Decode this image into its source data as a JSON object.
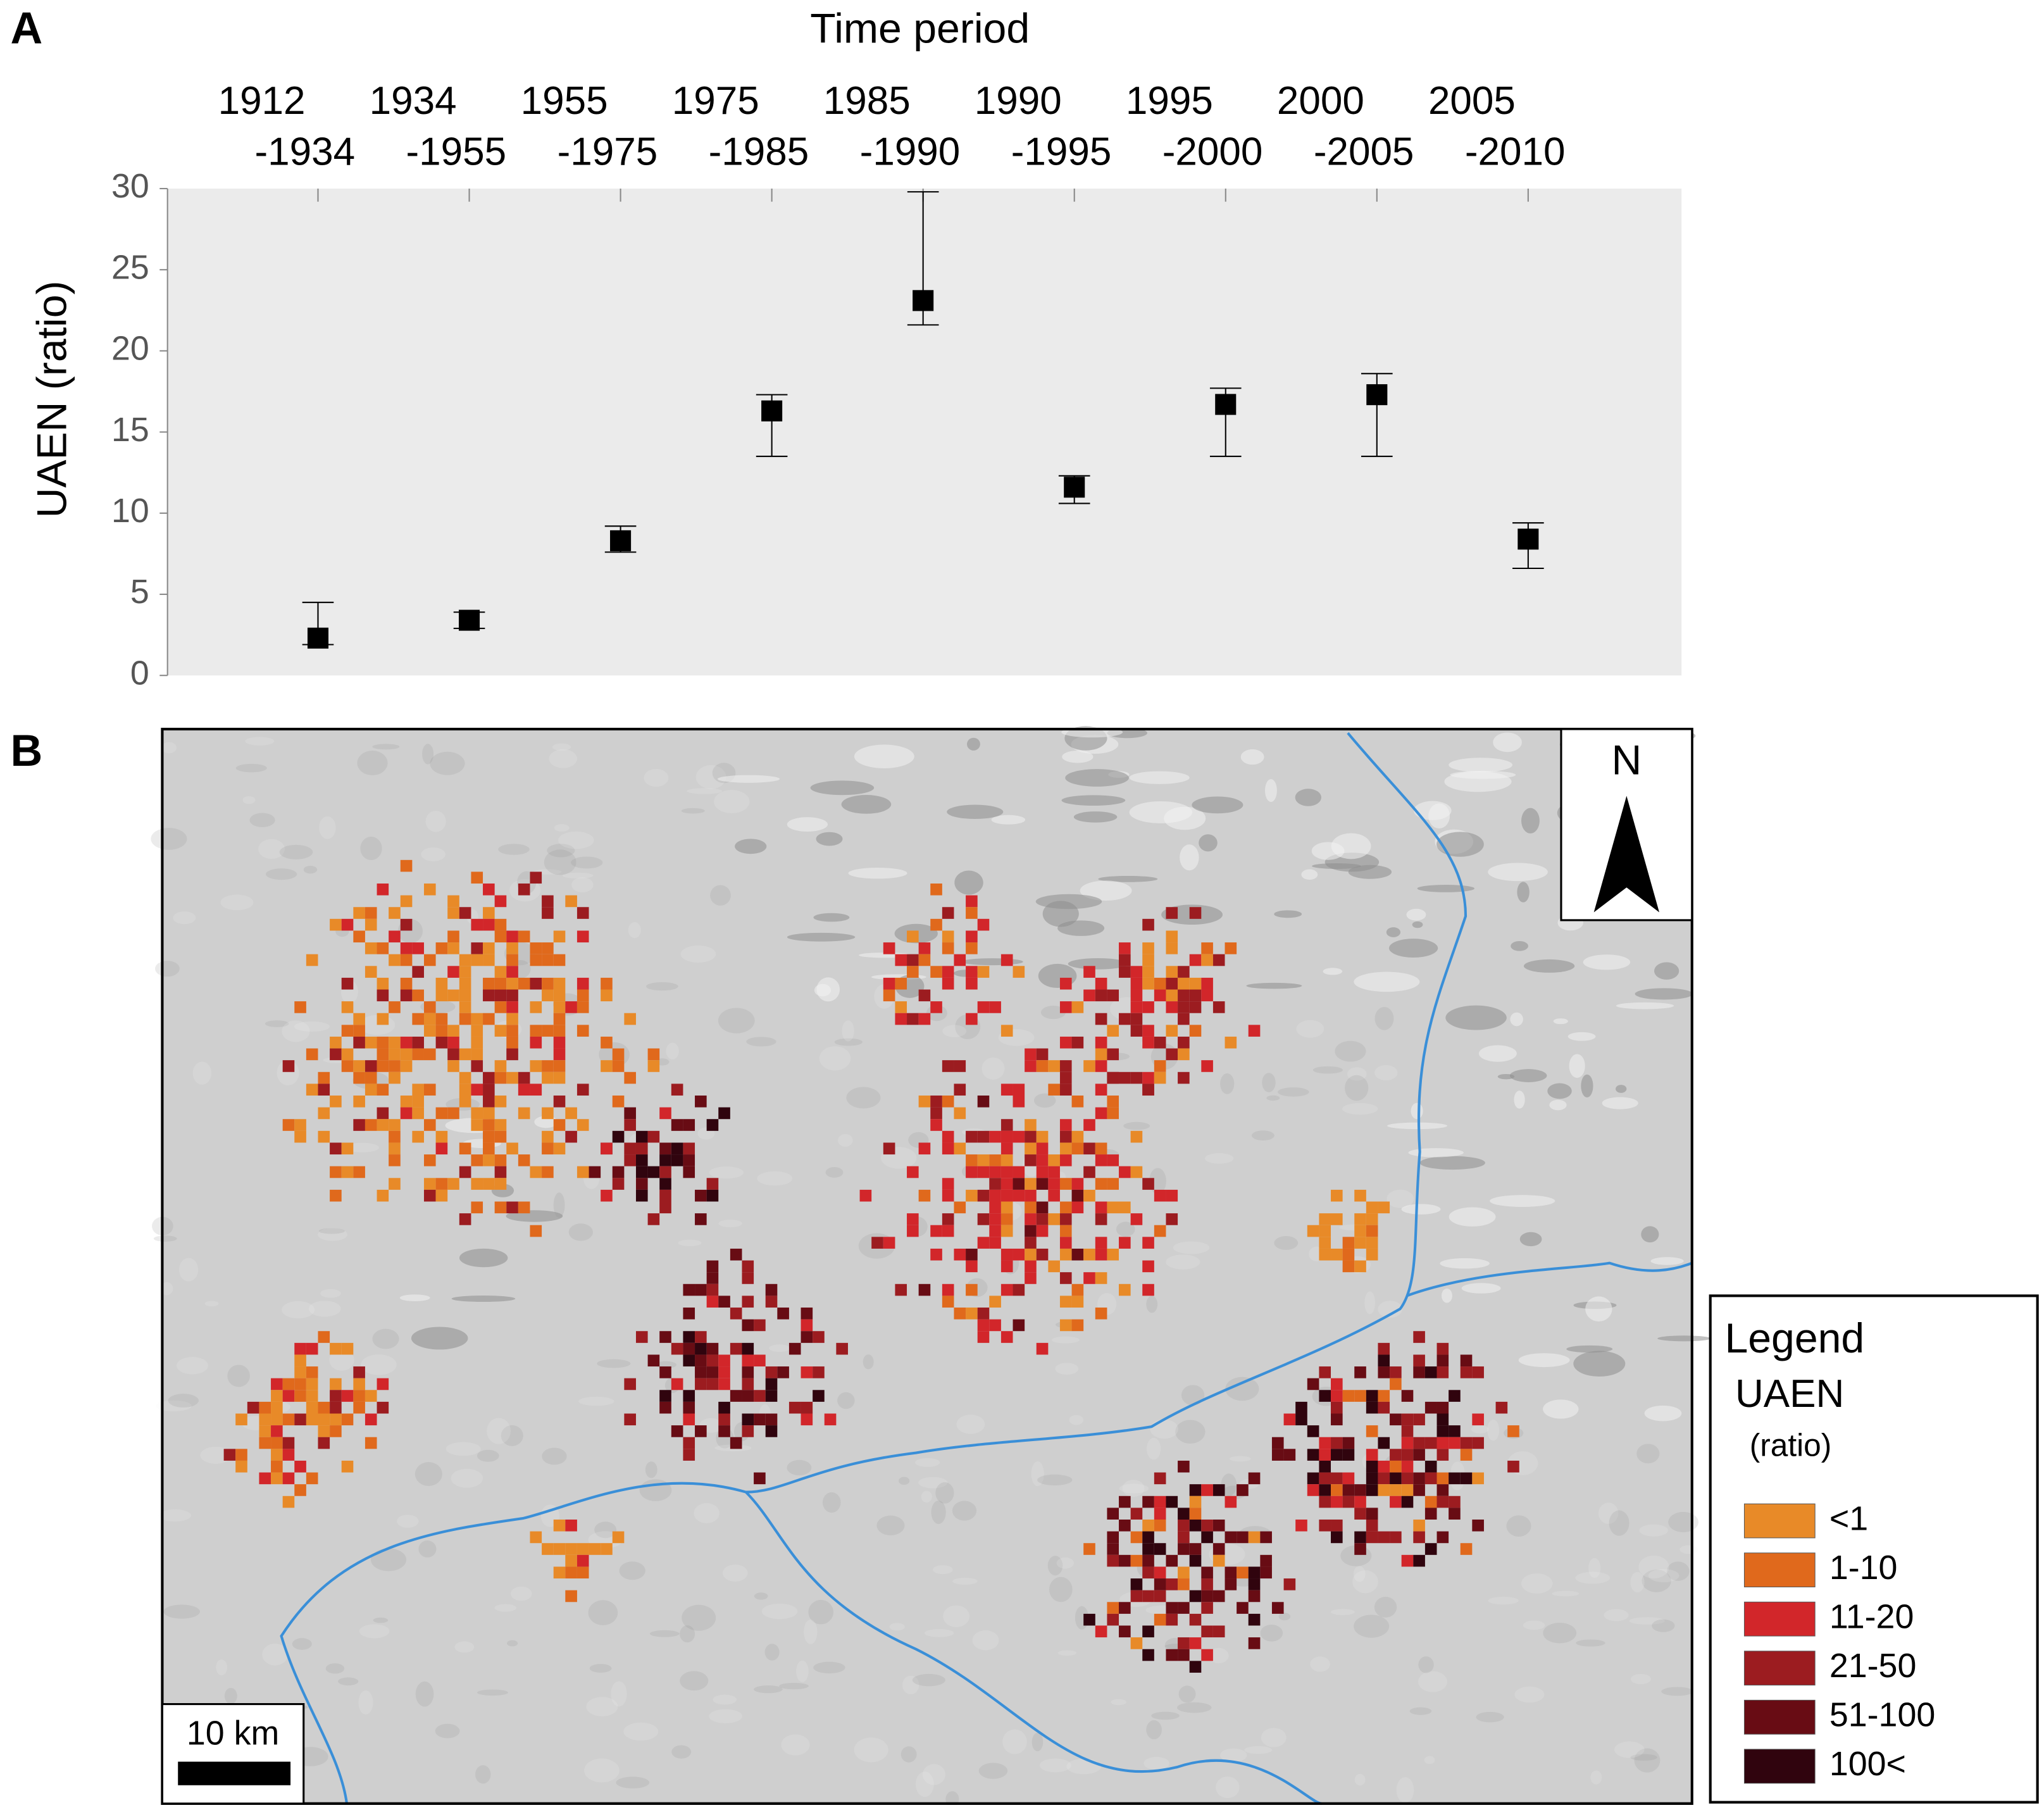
{
  "chart_data": {
    "type": "errorbar",
    "panel_label": "A",
    "title": "Time period",
    "y_label": "UAEN (ratio)",
    "categories": [
      [
        "1912",
        "-1934"
      ],
      [
        "1934",
        "-1955"
      ],
      [
        "1955",
        "-1975"
      ],
      [
        "1975",
        "-1985"
      ],
      [
        "1985",
        "-1990"
      ],
      [
        "1990",
        "-1995"
      ],
      [
        "1995",
        "-2000"
      ],
      [
        "2000",
        "-2005"
      ],
      [
        "2005",
        "-2010"
      ]
    ],
    "values": [
      2.3,
      3.4,
      8.3,
      16.3,
      23.1,
      11.6,
      16.7,
      17.3,
      8.4
    ],
    "lower": [
      1.9,
      2.9,
      7.6,
      13.5,
      21.6,
      10.6,
      13.5,
      13.5,
      6.6
    ],
    "upper": [
      4.5,
      3.9,
      9.2,
      17.3,
      29.8,
      12.3,
      17.7,
      18.6,
      9.4
    ],
    "color": "#000000",
    "background": "#ebebeb",
    "ylim": [
      0,
      30
    ],
    "yticks": [
      0,
      5,
      10,
      15,
      20,
      25,
      30
    ]
  },
  "map": {
    "panel_label": "B",
    "north": "N",
    "scale_bar": "10 km",
    "legend": {
      "title": "Legend",
      "subtitle": "UAEN",
      "unit": "(ratio)",
      "items": [
        {
          "label": "<1",
          "color": "#e88a28"
        },
        {
          "label": "1-10",
          "color": "#e0691c"
        },
        {
          "label": "11-20",
          "color": "#d2262a"
        },
        {
          "label": "21-50",
          "color": "#9c1c20"
        },
        {
          "label": "51-100",
          "color": "#680c14"
        },
        {
          "label": "100<",
          "color": "#30040e"
        }
      ]
    }
  }
}
